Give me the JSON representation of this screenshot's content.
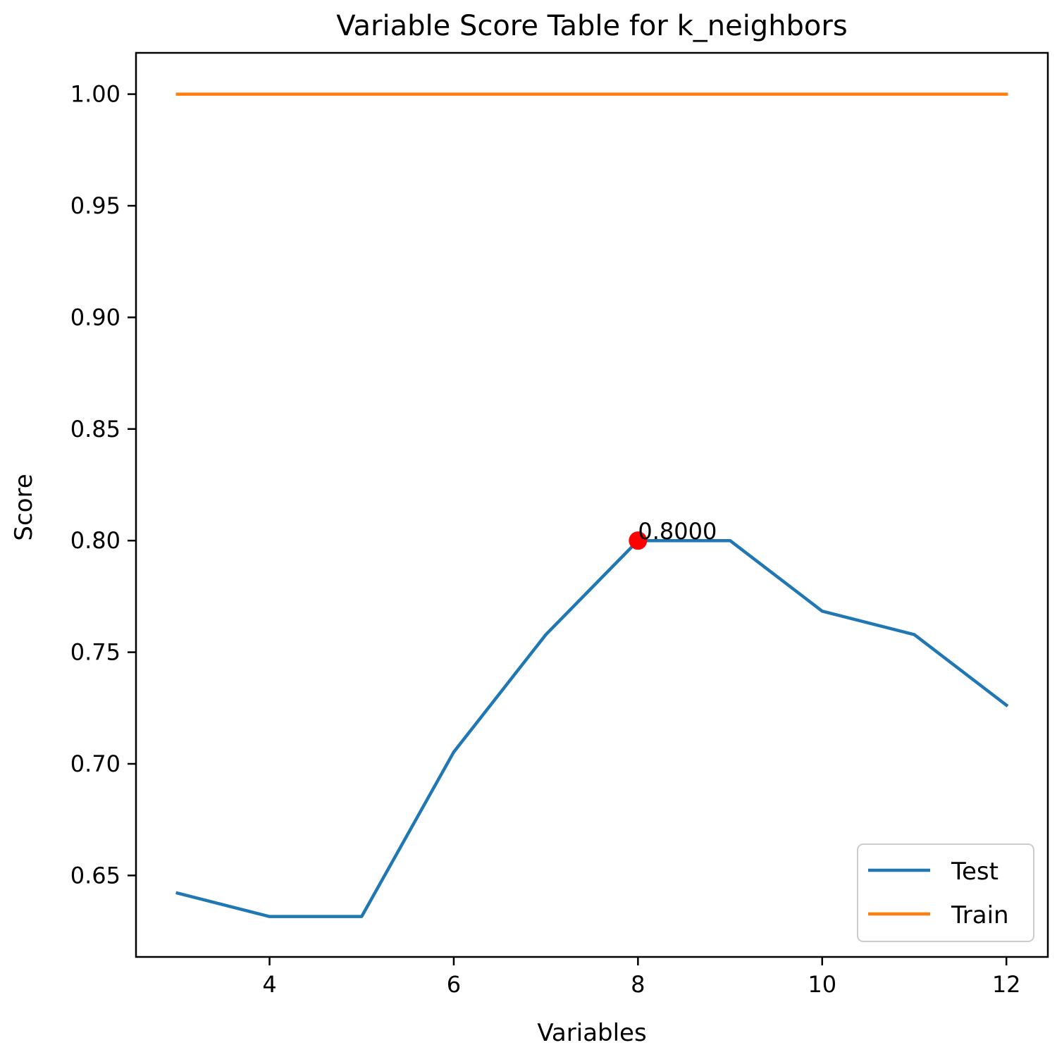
{
  "chart_data": {
    "type": "line",
    "title": "Variable Score Table for k_neighbors",
    "xlabel": "Variables",
    "ylabel": "Score",
    "xlim": [
      2.55,
      12.45
    ],
    "ylim": [
      0.6135,
      1.0185
    ],
    "xticks": [
      4,
      6,
      8,
      10,
      12
    ],
    "xtick_labels": [
      "4",
      "6",
      "8",
      "10",
      "12"
    ],
    "yticks": [
      0.65,
      0.7,
      0.75,
      0.8,
      0.85,
      0.9,
      0.95,
      1.0
    ],
    "ytick_labels": [
      "0.65",
      "0.70",
      "0.75",
      "0.80",
      "0.85",
      "0.90",
      "0.95",
      "1.00"
    ],
    "grid": false,
    "legend_position": "lower-right",
    "x": [
      3,
      4,
      5,
      6,
      7,
      8,
      9,
      10,
      11,
      12
    ],
    "series": [
      {
        "name": "Test",
        "color": "#1f77b4",
        "values": [
          0.6421,
          0.6316,
          0.6316,
          0.7053,
          0.7579,
          0.8,
          0.8,
          0.7684,
          0.7579,
          0.7263
        ]
      },
      {
        "name": "Train",
        "color": "#ff7f0e",
        "values": [
          1.0,
          1.0,
          1.0,
          1.0,
          1.0,
          1.0,
          1.0,
          1.0,
          1.0,
          1.0
        ]
      }
    ],
    "highlight": {
      "x": 8,
      "y": 0.8,
      "label": "0.8000",
      "color": "#ff0000"
    }
  }
}
